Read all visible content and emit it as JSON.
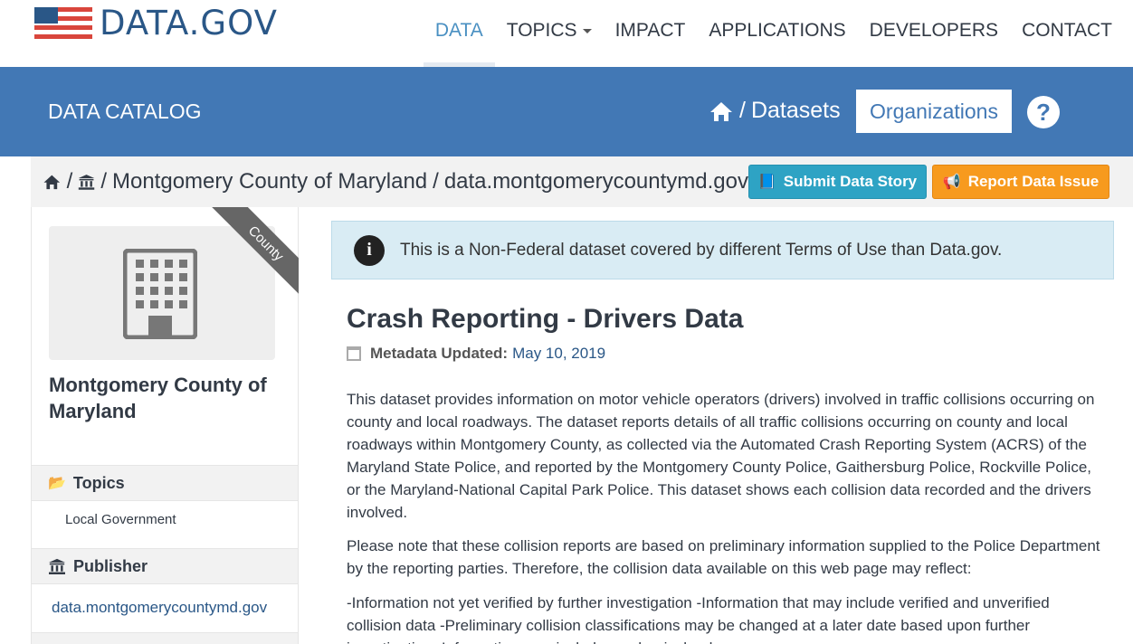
{
  "logo": {
    "text": "DATA.GOV"
  },
  "nav": [
    {
      "label": "DATA",
      "active": true
    },
    {
      "label": "TOPICS",
      "dropdown": true
    },
    {
      "label": "IMPACT"
    },
    {
      "label": "APPLICATIONS"
    },
    {
      "label": "DEVELOPERS"
    },
    {
      "label": "CONTACT"
    }
  ],
  "catalog": {
    "title": "DATA CATALOG",
    "datasets_link": "Datasets",
    "organizations_button": "Organizations",
    "help": "?"
  },
  "breadcrumb": {
    "org": "Montgomery County of Maryland",
    "publisher": "data.montgomerycountymd.gov"
  },
  "actions": {
    "submit_story": "Submit Data Story",
    "report_issue": "Report Data Issue"
  },
  "sidebar": {
    "ribbon": "County",
    "org_name": "Montgomery County of Maryland",
    "topics_heading": "Topics",
    "topics": [
      "Local Government"
    ],
    "publisher_heading": "Publisher",
    "publisher": "data.montgomerycountymd.gov"
  },
  "notice": "This is a Non-Federal dataset covered by different Terms of Use than Data.gov.",
  "dataset": {
    "title": "Crash Reporting - Drivers Data",
    "metadata_label": "Metadata Updated:",
    "metadata_date": "May 10, 2019",
    "paragraphs": [
      "This dataset provides information on motor vehicle operators (drivers) involved in traffic collisions occurring on county and local roadways. The dataset reports details of all traffic collisions occurring on county and local roadways within Montgomery County, as collected via the Automated Crash Reporting System (ACRS) of the Maryland State Police, and reported by the Montgomery County Police, Gaithersburg Police, Rockville Police, or the Maryland-National Capital Park Police. This dataset shows each collision data recorded and the drivers involved.",
      "Please note that these collision reports are based on preliminary information supplied to the Police Department by the reporting parties. Therefore, the collision data available on this web page may reflect:",
      "-Information not yet verified by further investigation -Information that may include verified and unverified collision data -Preliminary collision classifications may be changed at a later date based upon further investigation -Information may include mechanical or human error"
    ]
  },
  "colors": {
    "brand_blue": "#4278b5",
    "story_button": "#2ea3c4",
    "issue_button": "#f79a1e",
    "notice_bg": "#d9ecf4"
  }
}
